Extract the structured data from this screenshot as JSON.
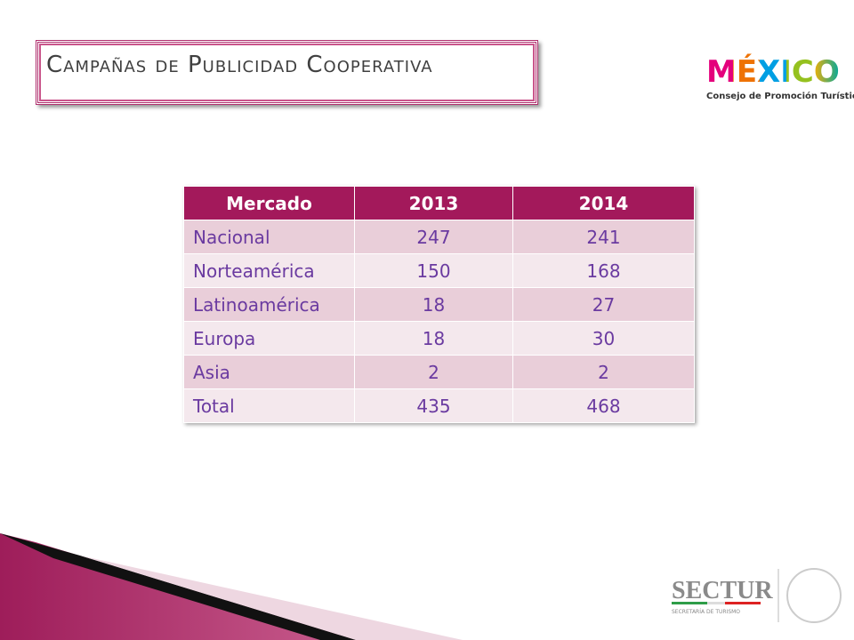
{
  "header": {
    "title": "Campañas de Publicidad Cooperativa"
  },
  "logo": {
    "brand": "MÉXICO",
    "subtitle": "Consejo de Promoción Turística"
  },
  "footer": {
    "brand": "SECTUR",
    "subtitle": "SECRETARÍA DE TURISMO"
  },
  "table": {
    "columns": [
      "Mercado",
      "2013",
      "2014"
    ],
    "rows": [
      [
        "Nacional",
        247,
        241
      ],
      [
        "Norteamérica",
        150,
        168
      ],
      [
        "Latinoamérica",
        18,
        27
      ],
      [
        "Europa",
        18,
        30
      ],
      [
        "Asia",
        2,
        2
      ],
      [
        "Total",
        435,
        468
      ]
    ]
  }
}
